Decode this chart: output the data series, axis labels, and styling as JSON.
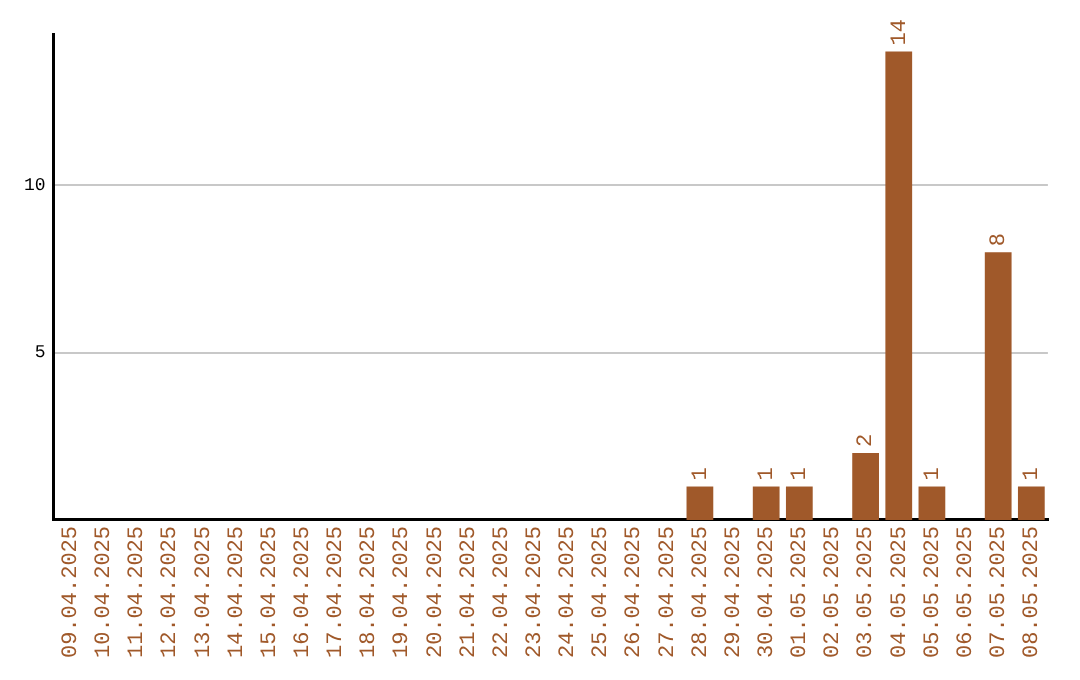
{
  "chart_data": {
    "type": "bar",
    "categories": [
      "09.04.2025",
      "10.04.2025",
      "11.04.2025",
      "12.04.2025",
      "13.04.2025",
      "14.04.2025",
      "15.04.2025",
      "16.04.2025",
      "17.04.2025",
      "18.04.2025",
      "19.04.2025",
      "20.04.2025",
      "21.04.2025",
      "22.04.2025",
      "23.04.2025",
      "24.04.2025",
      "25.04.2025",
      "26.04.2025",
      "27.04.2025",
      "28.04.2025",
      "29.04.2025",
      "30.04.2025",
      "01.05.2025",
      "02.05.2025",
      "03.05.2025",
      "04.05.2025",
      "05.05.2025",
      "06.05.2025",
      "07.05.2025",
      "08.05.2025"
    ],
    "values": [
      0,
      0,
      0,
      0,
      0,
      0,
      0,
      0,
      0,
      0,
      0,
      0,
      0,
      0,
      0,
      0,
      0,
      0,
      0,
      1,
      0,
      1,
      1,
      0,
      2,
      14,
      1,
      0,
      8,
      1
    ],
    "value_labels": [
      null,
      null,
      null,
      null,
      null,
      null,
      null,
      null,
      null,
      null,
      null,
      null,
      null,
      null,
      null,
      null,
      null,
      null,
      null,
      "1",
      null,
      "1",
      "1",
      null,
      "2",
      "14",
      "1",
      null,
      "8",
      "1"
    ],
    "color": "#a0592a",
    "ylim": [
      0,
      14.5
    ],
    "yticks": [
      5,
      10
    ],
    "grid": "y",
    "legend": false
  }
}
